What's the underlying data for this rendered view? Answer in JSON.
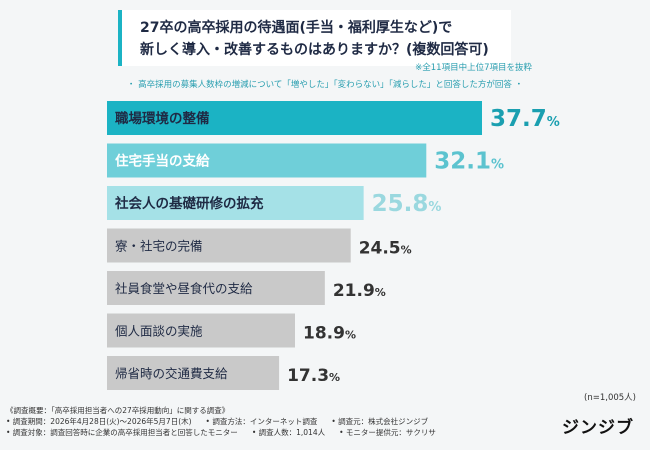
{
  "title": {
    "line1": "27卒の高卒採用の待遇面(手当・福利厚生など)で",
    "line2": "新しく導入・改善するものはありますか？(複数回答可)"
  },
  "note": "※全11項目中上位7項目を抜粋",
  "subtitle": "・ 高卒採用の募集人数枠の増減について「増やした」「変わらない」「減らした」と回答した方が回答 ・",
  "sample_size": "(n=1,005人)",
  "footer": {
    "line1": "《調査概要：「高卒採用担当者への27卒採用動向」に関する調査》",
    "line2a": "• 調査期間：2026年4月28日(火)～2026年5月7日(木)",
    "line2b": "• 調査方法：インターネット調査",
    "line2c": "• 調査元：株式会社ジンジブ",
    "line3a": "• 調査対象：調査回答時に企業の高卒採用担当者と回答したモニター",
    "line3b": "• 調査人数：1,014人",
    "line3c": "• モニター提供元：サクリサ"
  },
  "logo": "ジンジブ",
  "chart_data": {
    "type": "bar",
    "orientation": "horizontal",
    "categories": [
      "職場環境の整備",
      "住宅手当の支給",
      "社会人の基礎研修の拡充",
      "寮・社宅の完備",
      "社員食堂や昼食代の支給",
      "個人面談の実施",
      "帰省時の交通費支給"
    ],
    "values": [
      37.7,
      32.1,
      25.8,
      24.5,
      21.9,
      18.9,
      17.3
    ],
    "unit": "%",
    "value_labels": [
      "37.7",
      "32.1",
      "25.8",
      "24.5",
      "21.9",
      "18.9",
      "17.3"
    ],
    "xlim": [
      0,
      40
    ],
    "colors": [
      "#1bb3c4",
      "#6fcfd9",
      "#a5e1e7",
      "#c9c9c9",
      "#c9c9c9",
      "#c9c9c9",
      "#c9c9c9"
    ],
    "value_colors": [
      "#1a9fb0",
      "#5cc3cf",
      "#9ad8df",
      "#333333",
      "#333333",
      "#333333",
      "#333333"
    ],
    "label_colors": [
      "#1f2a44",
      "#ffffff",
      "#1f2a44",
      "#1f2a44",
      "#1f2a44",
      "#1f2a44",
      "#1f2a44"
    ]
  }
}
